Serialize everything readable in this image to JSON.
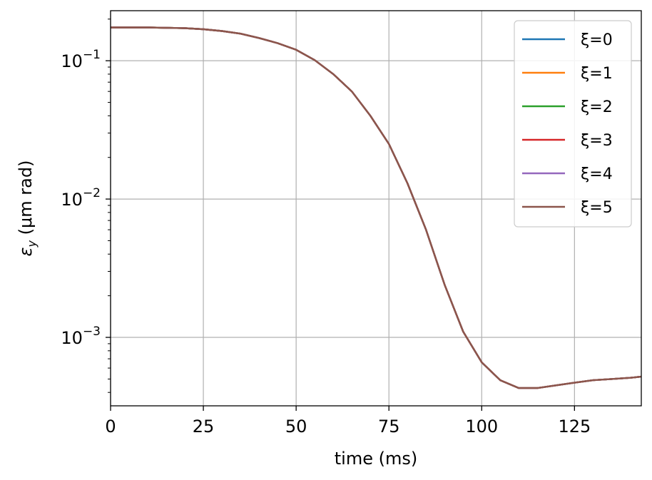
{
  "chart_data": {
    "type": "line",
    "xlabel": "time (ms)",
    "ylabel": "ε_y (μm rad)",
    "ylabel_main": "ε",
    "ylabel_sub": "y",
    "ylabel_rest": " (μm rad)",
    "xlim": [
      0,
      143
    ],
    "ylim": [
      0.00032,
      0.23
    ],
    "yscale": "log",
    "grid": true,
    "legend_position": "top-right",
    "x_ticks": [
      0,
      25,
      50,
      75,
      100,
      125
    ],
    "x_tick_labels": [
      "0",
      "25",
      "50",
      "75",
      "100",
      "125"
    ],
    "y_ticks": [
      0.001,
      0.01,
      0.1
    ],
    "y_tick_labels": [
      {
        "base": "10",
        "exp": "−3"
      },
      {
        "base": "10",
        "exp": "−2"
      },
      {
        "base": "10",
        "exp": "−1"
      }
    ],
    "x": [
      0,
      5,
      10,
      15,
      20,
      25,
      30,
      35,
      40,
      45,
      50,
      55,
      60,
      65,
      70,
      75,
      80,
      85,
      90,
      95,
      100,
      105,
      110,
      115,
      120,
      125,
      130,
      135,
      140,
      143
    ],
    "series": [
      {
        "name": "ξ=0",
        "color": "#1f77b4",
        "values": [
          0.174,
          0.174,
          0.174,
          0.173,
          0.172,
          0.169,
          0.164,
          0.157,
          0.146,
          0.134,
          0.12,
          0.101,
          0.08,
          0.06,
          0.04,
          0.025,
          0.013,
          0.006,
          0.0024,
          0.0011,
          0.00066,
          0.00049,
          0.00043,
          0.00043,
          0.00045,
          0.00047,
          0.00049,
          0.0005,
          0.00051,
          0.00052
        ]
      },
      {
        "name": "ξ=1",
        "color": "#ff7f0e",
        "values": [
          0.174,
          0.174,
          0.174,
          0.173,
          0.172,
          0.169,
          0.164,
          0.157,
          0.146,
          0.134,
          0.12,
          0.101,
          0.08,
          0.06,
          0.04,
          0.025,
          0.013,
          0.006,
          0.0024,
          0.0011,
          0.00066,
          0.00049,
          0.00043,
          0.00043,
          0.00045,
          0.00047,
          0.00049,
          0.0005,
          0.00051,
          0.00052
        ]
      },
      {
        "name": "ξ=2",
        "color": "#2ca02c",
        "values": [
          0.174,
          0.174,
          0.174,
          0.173,
          0.172,
          0.169,
          0.164,
          0.157,
          0.146,
          0.134,
          0.12,
          0.101,
          0.08,
          0.06,
          0.04,
          0.025,
          0.013,
          0.006,
          0.0024,
          0.0011,
          0.00066,
          0.00049,
          0.00043,
          0.00043,
          0.00045,
          0.00047,
          0.00049,
          0.0005,
          0.00051,
          0.00052
        ]
      },
      {
        "name": "ξ=3",
        "color": "#d62728",
        "values": [
          0.174,
          0.174,
          0.174,
          0.173,
          0.172,
          0.169,
          0.164,
          0.157,
          0.146,
          0.134,
          0.12,
          0.101,
          0.08,
          0.06,
          0.04,
          0.025,
          0.013,
          0.006,
          0.0024,
          0.0011,
          0.00066,
          0.00049,
          0.00043,
          0.00043,
          0.00045,
          0.00047,
          0.00049,
          0.0005,
          0.00051,
          0.00052
        ]
      },
      {
        "name": "ξ=4",
        "color": "#9467bd",
        "values": [
          0.174,
          0.174,
          0.174,
          0.173,
          0.172,
          0.169,
          0.164,
          0.157,
          0.146,
          0.134,
          0.12,
          0.101,
          0.08,
          0.06,
          0.04,
          0.025,
          0.013,
          0.006,
          0.0024,
          0.0011,
          0.00066,
          0.00049,
          0.00043,
          0.00043,
          0.00045,
          0.00047,
          0.00049,
          0.0005,
          0.00051,
          0.00052
        ]
      },
      {
        "name": "ξ=5",
        "color": "#8c564b",
        "values": [
          0.174,
          0.174,
          0.174,
          0.173,
          0.172,
          0.169,
          0.164,
          0.157,
          0.146,
          0.134,
          0.12,
          0.101,
          0.08,
          0.06,
          0.04,
          0.025,
          0.013,
          0.006,
          0.0024,
          0.0011,
          0.00066,
          0.00049,
          0.00043,
          0.00043,
          0.00045,
          0.00047,
          0.00049,
          0.0005,
          0.00051,
          0.00052
        ]
      }
    ]
  }
}
